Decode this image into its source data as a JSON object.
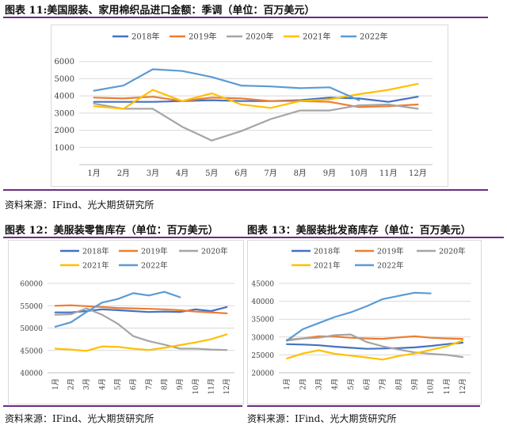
{
  "figures": {
    "fig11": {
      "title": "图表 11:美国服装、家用棉织品进口金额：季调（单位：百万美元）"
    },
    "fig12": {
      "title": "图表 12：美服装零售库存（单位：百万美元）"
    },
    "fig13": {
      "title": "图表 13：美服装批发商库存（单位：百万美元）"
    }
  },
  "sources": {
    "top": "资料来源：IFind、光大期货研究所",
    "bottom_left": "资料来源：IFind、光大期货研究所",
    "bottom_right": "资料来源：IFind、光大期货研究所"
  },
  "colors": {
    "2018年": "#4472c4",
    "2019年": "#ed7d31",
    "2020年": "#a5a5a5",
    "2021年": "#ffc000",
    "2022年": "#5b9bd5",
    "rule": "#6b2c83",
    "grid": "#d9d9d9"
  },
  "chart_data": [
    {
      "id": "fig11",
      "type": "line",
      "title": "美国服装、家用棉织品进口金额：季调（单位：百万美元）",
      "categories": [
        "1月",
        "2月",
        "3月",
        "4月",
        "5月",
        "6月",
        "7月",
        "8月",
        "9月",
        "10月",
        "11月",
        "12月"
      ],
      "ylim": [
        0,
        7000
      ],
      "yticks": [
        1000,
        2000,
        3000,
        4000,
        5000,
        6000
      ],
      "legend": "top",
      "grid": true,
      "series": [
        {
          "name": "2018年",
          "values": [
            3650,
            3650,
            3650,
            3700,
            3750,
            3700,
            3700,
            3750,
            3900,
            3850,
            3650,
            3950
          ]
        },
        {
          "name": "2019年",
          "values": [
            3900,
            3850,
            3950,
            3700,
            3900,
            3850,
            3700,
            3700,
            3650,
            3350,
            3400,
            3500
          ]
        },
        {
          "name": "2020年",
          "values": [
            3550,
            3250,
            3250,
            2200,
            1400,
            1950,
            2650,
            3150,
            3150,
            3450,
            3500,
            3250
          ]
        },
        {
          "name": "2021年",
          "values": [
            3400,
            3250,
            4350,
            3700,
            4150,
            3500,
            3300,
            3700,
            3800,
            4100,
            4350,
            4700
          ]
        },
        {
          "name": "2022年",
          "values": [
            4300,
            4600,
            5550,
            5450,
            5100,
            4600,
            4550,
            4450,
            4500,
            3750,
            null,
            null
          ]
        }
      ]
    },
    {
      "id": "fig12",
      "type": "line",
      "title": "美服装零售库存（单位：百万美元）",
      "categories": [
        "1月",
        "2月",
        "3月",
        "4月",
        "5月",
        "6月",
        "7月",
        "8月",
        "9月",
        "10月",
        "11月",
        "12月"
      ],
      "ylim": [
        40000,
        60000
      ],
      "yticks": [
        40000,
        45000,
        50000,
        55000,
        60000
      ],
      "legend": "top",
      "grid": true,
      "series": [
        {
          "name": "2018年",
          "values": [
            53500,
            53500,
            53800,
            54200,
            54000,
            53800,
            53600,
            53700,
            53600,
            54200,
            53800,
            54700
          ]
        },
        {
          "name": "2019年",
          "values": [
            55000,
            55100,
            54900,
            54700,
            54500,
            54400,
            54300,
            54200,
            54000,
            53700,
            53500,
            53300
          ]
        },
        {
          "name": "2020年",
          "values": [
            53000,
            53100,
            54400,
            53000,
            51000,
            48200,
            47100,
            46300,
            45400,
            45400,
            45200,
            45100
          ]
        },
        {
          "name": "2021年",
          "values": [
            45400,
            45200,
            44900,
            45900,
            45800,
            45400,
            45100,
            45600,
            46200,
            46800,
            47500,
            48600
          ]
        },
        {
          "name": "2022年",
          "values": [
            50300,
            51300,
            53600,
            55700,
            56500,
            57800,
            57300,
            58100,
            56900,
            null,
            null,
            null
          ]
        }
      ]
    },
    {
      "id": "fig13",
      "type": "line",
      "title": "美服装批发商库存（单位：百万美元）",
      "categories": [
        "1月",
        "2月",
        "3月",
        "4月",
        "5月",
        "6月",
        "7月",
        "8月",
        "9月",
        "10月",
        "11月",
        "12月"
      ],
      "ylim": [
        20000,
        45000
      ],
      "yticks": [
        20000,
        25000,
        30000,
        35000,
        40000,
        45000
      ],
      "legend": "top",
      "grid": true,
      "series": [
        {
          "name": "2018年",
          "values": [
            28000,
            27900,
            27700,
            27300,
            27000,
            26700,
            26800,
            26900,
            27100,
            27500,
            28000,
            28400
          ]
        },
        {
          "name": "2019年",
          "values": [
            29200,
            29600,
            30200,
            30100,
            29800,
            29600,
            29500,
            29900,
            30200,
            29800,
            29600,
            29500
          ]
        },
        {
          "name": "2020年",
          "values": [
            29000,
            29600,
            29800,
            30500,
            30700,
            28600,
            27400,
            26500,
            25700,
            25300,
            25000,
            24400
          ]
        },
        {
          "name": "2021年",
          "values": [
            24000,
            25400,
            26300,
            25300,
            24800,
            24300,
            23700,
            24700,
            25400,
            26400,
            27400,
            29000
          ]
        },
        {
          "name": "2022年",
          "values": [
            29000,
            32200,
            33900,
            35600,
            36900,
            38600,
            40600,
            41500,
            42400,
            42200,
            null,
            null
          ]
        }
      ]
    }
  ]
}
